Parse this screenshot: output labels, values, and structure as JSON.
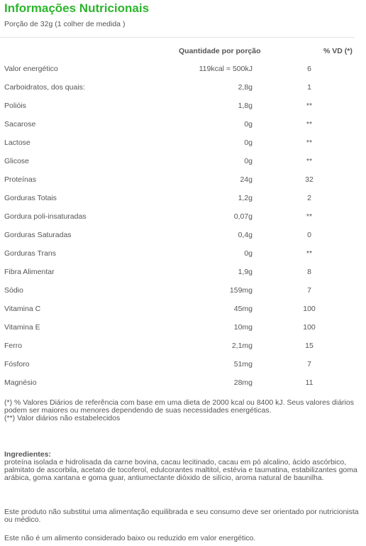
{
  "header": {
    "title": "Informações Nutricionais",
    "portion": "Porção de 32g (1 colher de medida )"
  },
  "table": {
    "col_qty": "Quantidade por porção",
    "col_vd": "% VD (*)",
    "rows": [
      {
        "name": "Valor energético",
        "qty": "119kcal = 500kJ",
        "vd": "6"
      },
      {
        "name": "Carboidratos, dos quais:",
        "qty": "2,8g",
        "vd": "1"
      },
      {
        "name": "Polióis",
        "qty": "1,8g",
        "vd": "**"
      },
      {
        "name": "Sacarose",
        "qty": "0g",
        "vd": "**"
      },
      {
        "name": "Lactose",
        "qty": "0g",
        "vd": "**"
      },
      {
        "name": "Glicose",
        "qty": "0g",
        "vd": "**"
      },
      {
        "name": "Proteínas",
        "qty": "24g",
        "vd": "32"
      },
      {
        "name": "Gorduras Totais",
        "qty": "1,2g",
        "vd": "2"
      },
      {
        "name": "Gordura poli-insaturadas",
        "qty": "0,07g",
        "vd": "**"
      },
      {
        "name": "Gorduras Saturadas",
        "qty": "0,4g",
        "vd": "0"
      },
      {
        "name": "Gorduras Trans",
        "qty": "0g",
        "vd": "**"
      },
      {
        "name": "Fibra Alimentar",
        "qty": "1,9g",
        "vd": "8"
      },
      {
        "name": "Sódio",
        "qty": "159mg",
        "vd": "7"
      },
      {
        "name": "Vitamina C",
        "qty": "45mg",
        "vd": "100"
      },
      {
        "name": "Vitamina E",
        "qty": "10mg",
        "vd": "100"
      },
      {
        "name": "Ferro",
        "qty": "2,1mg",
        "vd": "15"
      },
      {
        "name": "Fósforo",
        "qty": "51mg",
        "vd": "7"
      },
      {
        "name": "Magnésio",
        "qty": "28mg",
        "vd": "11"
      }
    ]
  },
  "notes": {
    "vd_note": "(*) % Valores Diários de referência com base em uma dieta de 2000 kcal ou 8400 kJ. Seus valores diários podem ser maiores ou menores dependendo de suas necessidades energéticas.",
    "na_note": "(**) Valor diários não estabelecidos"
  },
  "ingredients": {
    "title": "Ingredientes:",
    "text": "proteína isolada e hidrolisada da carne bovina, cacau lecitinado, cacau em pó alcalino, ácido ascórbico, palmitato de ascorbila, acetato de tocoferol, edulcorantes maltitol, estévia e taumatina, estabilizantes goma arábica, goma xantana e goma guar, antiumectante dióxido de silício, aroma natural de baunilha."
  },
  "disclaimers": {
    "line1": "Este produto não substitui uma alimentação equilibrada e seu consumo deve ser orientado por nutricionista ou médico.",
    "line2": "Este não é um alimento considerado baixo ou reduzido em valor energético."
  },
  "colors": {
    "title_green": "#2bb52b",
    "text_gray": "#555555"
  }
}
